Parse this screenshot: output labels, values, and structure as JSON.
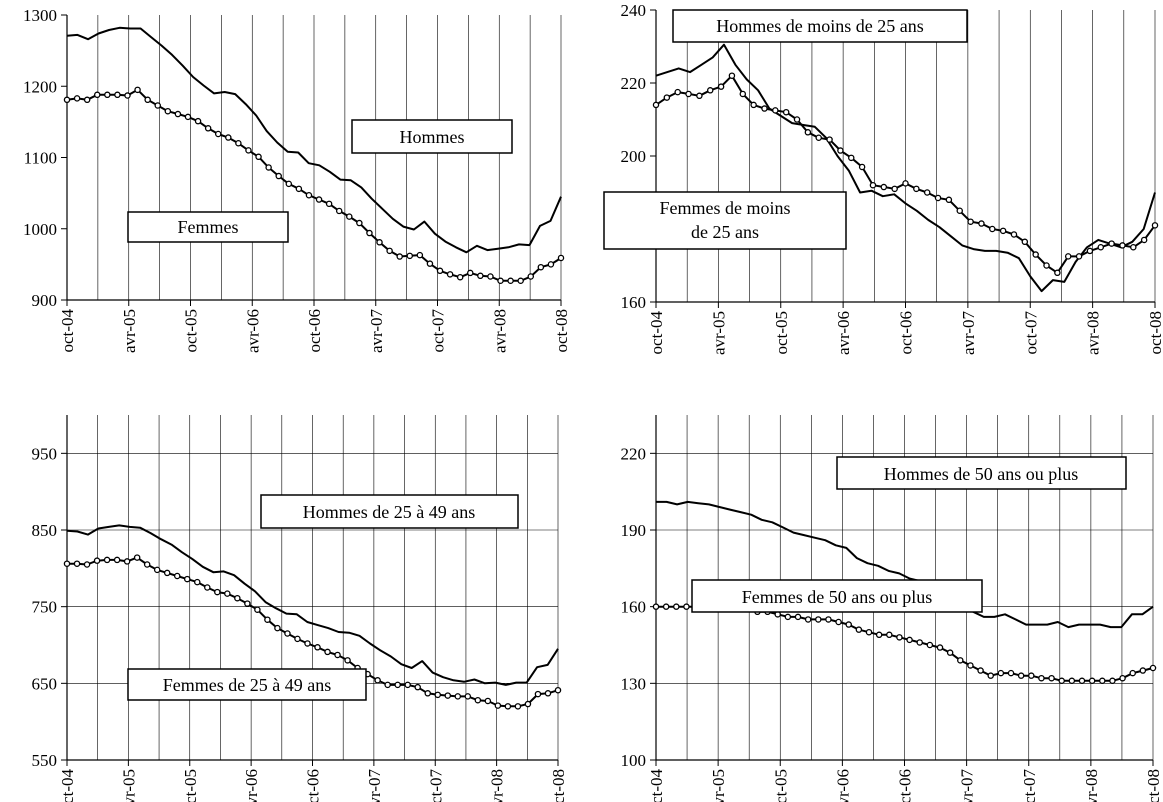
{
  "chart_data": [
    {
      "type": "line",
      "title": "",
      "xlabel": "",
      "ylabel": "",
      "ylim": [
        900,
        1300
      ],
      "yticks": [
        900,
        1000,
        1100,
        1200,
        1300
      ],
      "xticks": [
        "oct-04",
        "avr-05",
        "oct-05",
        "avr-06",
        "oct-06",
        "avr-07",
        "oct-07",
        "avr-08",
        "oct-08"
      ],
      "grid": true,
      "series": [
        {
          "name": "Hommes",
          "marker": "none",
          "values": [
            1271,
            1272,
            1266,
            1274,
            1279,
            1282,
            1281,
            1281,
            1269,
            1257,
            1244,
            1229,
            1213,
            1201,
            1190,
            1192,
            1189,
            1175,
            1159,
            1137,
            1121,
            1108,
            1107,
            1092,
            1089,
            1080,
            1069,
            1068,
            1058,
            1042,
            1028,
            1014,
            1003,
            999,
            1010,
            993,
            982,
            974,
            967,
            976,
            970,
            972,
            974,
            978,
            977,
            1004,
            1011,
            1045
          ]
        },
        {
          "name": "Femmes",
          "marker": "circle",
          "values": [
            1181,
            1183,
            1181,
            1188,
            1188,
            1188,
            1187,
            1195,
            1181,
            1173,
            1165,
            1161,
            1157,
            1151,
            1141,
            1133,
            1128,
            1120,
            1110,
            1101,
            1086,
            1074,
            1063,
            1056,
            1047,
            1041,
            1035,
            1025,
            1017,
            1008,
            994,
            981,
            969,
            961,
            962,
            963,
            951,
            941,
            936,
            932,
            938,
            934,
            933,
            927,
            927,
            927,
            933,
            946,
            950,
            959
          ]
        }
      ],
      "annotations": [
        "Hommes",
        "Femmes"
      ]
    },
    {
      "type": "line",
      "title": "",
      "xlabel": "",
      "ylabel": "",
      "ylim": [
        160,
        240
      ],
      "yticks": [
        160,
        180,
        200,
        220,
        240
      ],
      "xticks": [
        "oct-04",
        "avr-05",
        "oct-05",
        "avr-06",
        "oct-06",
        "avr-07",
        "oct-07",
        "avr-08",
        "oct-08"
      ],
      "grid": true,
      "series": [
        {
          "name": "Hommes de moins de 25 ans",
          "marker": "none",
          "values": [
            222,
            223,
            224,
            223,
            225,
            227,
            230.5,
            225,
            221,
            218,
            213,
            211,
            209,
            208.5,
            208,
            205,
            200,
            196,
            190,
            190.5,
            189,
            189.5,
            187,
            185,
            182.5,
            180.5,
            178,
            175.5,
            174.5,
            174,
            174,
            173.5,
            172,
            167,
            163,
            166,
            165.5,
            171,
            175,
            177,
            176,
            175,
            176.5,
            180,
            190
          ]
        },
        {
          "name": "Femmes de moins de 25 ans",
          "marker": "circle",
          "values": [
            214,
            216,
            217.5,
            217,
            216.5,
            218,
            219,
            222,
            217,
            214,
            213,
            212.5,
            212,
            210,
            206.5,
            205,
            204.5,
            201.5,
            199.5,
            197,
            192,
            191.5,
            191,
            192.5,
            191,
            190,
            188.5,
            188,
            185,
            182,
            181.5,
            180,
            179.5,
            178.5,
            176.5,
            173,
            170,
            168,
            172.5,
            172.5,
            174,
            175,
            176,
            175.5,
            175,
            177,
            181
          ]
        }
      ],
      "annotations": [
        "Hommes de moins de 25 ans",
        "Femmes de moins de 25 ans"
      ]
    },
    {
      "type": "line",
      "title": "",
      "xlabel": "",
      "ylabel": "",
      "ylim": [
        550,
        1000
      ],
      "yticks": [
        550,
        650,
        750,
        850,
        950
      ],
      "xticks": [
        "oct-04",
        "avr-05",
        "oct-05",
        "avr-06",
        "oct-06",
        "avr-07",
        "oct-07",
        "avr-08",
        "oct-08"
      ],
      "grid": true,
      "series": [
        {
          "name": "Hommes de 25 à 49 ans",
          "marker": "none",
          "values": [
            849,
            848,
            844,
            852,
            854,
            856,
            854,
            853,
            846,
            838,
            831,
            821,
            812,
            802,
            795,
            796,
            791,
            780,
            770,
            756,
            748,
            741,
            740,
            730,
            726,
            722,
            717,
            716,
            712,
            702,
            693,
            685,
            675,
            670,
            679,
            664,
            658,
            654,
            652,
            655,
            650,
            651,
            648,
            651,
            651,
            671,
            674,
            695
          ]
        },
        {
          "name": "Femmes de 25 à 49 ans",
          "marker": "circle",
          "values": [
            806,
            806,
            805,
            810,
            811,
            811,
            809,
            814,
            805,
            798,
            794,
            790,
            786,
            782,
            775,
            769,
            767,
            761,
            754,
            746,
            733,
            722,
            715,
            708,
            702,
            697,
            691,
            687,
            680,
            670,
            662,
            654,
            648,
            648,
            648,
            645,
            637,
            635,
            634,
            633,
            633,
            628,
            627,
            621,
            620,
            620,
            623,
            636,
            637,
            641
          ]
        }
      ],
      "annotations": [
        "Hommes de 25 à 49 ans",
        "Femmes de 25 à 49 ans"
      ]
    },
    {
      "type": "line",
      "title": "",
      "xlabel": "",
      "ylabel": "",
      "ylim": [
        100,
        235
      ],
      "yticks": [
        100,
        130,
        160,
        190,
        220
      ],
      "xticks": [
        "oct-04",
        "avr-05",
        "oct-05",
        "avr-06",
        "oct-06",
        "avr-07",
        "oct-07",
        "avr-08",
        "oct-08"
      ],
      "grid": true,
      "series": [
        {
          "name": "Hommes de 50 ans ou plus",
          "marker": "none",
          "values": [
            201,
            201,
            200,
            201,
            200.5,
            200,
            199,
            198,
            197,
            196,
            194,
            193,
            191,
            189,
            188,
            187,
            186,
            184,
            183,
            179,
            177,
            176,
            174,
            173,
            171,
            170,
            169,
            167,
            164,
            162,
            158,
            156,
            156,
            157,
            155,
            153,
            153,
            153,
            154,
            152,
            153,
            153,
            153,
            152,
            152,
            157,
            157,
            160
          ]
        },
        {
          "name": "Femmes de 50 ans ou plus",
          "marker": "circle",
          "values": [
            160,
            160,
            160,
            160,
            160,
            160,
            160,
            160,
            160,
            159,
            158,
            158,
            157,
            156,
            156,
            155,
            155,
            155,
            154,
            153,
            151,
            150,
            149,
            149,
            148,
            147,
            146,
            145,
            144,
            142,
            139,
            137,
            135,
            133,
            134,
            134,
            133,
            133,
            132,
            132,
            131,
            131,
            131,
            131,
            131,
            131,
            132,
            134,
            135,
            136
          ]
        }
      ],
      "annotations": [
        "Hommes de 50 ans ou plus",
        "Femmes de 50 ans ou plus"
      ]
    }
  ]
}
